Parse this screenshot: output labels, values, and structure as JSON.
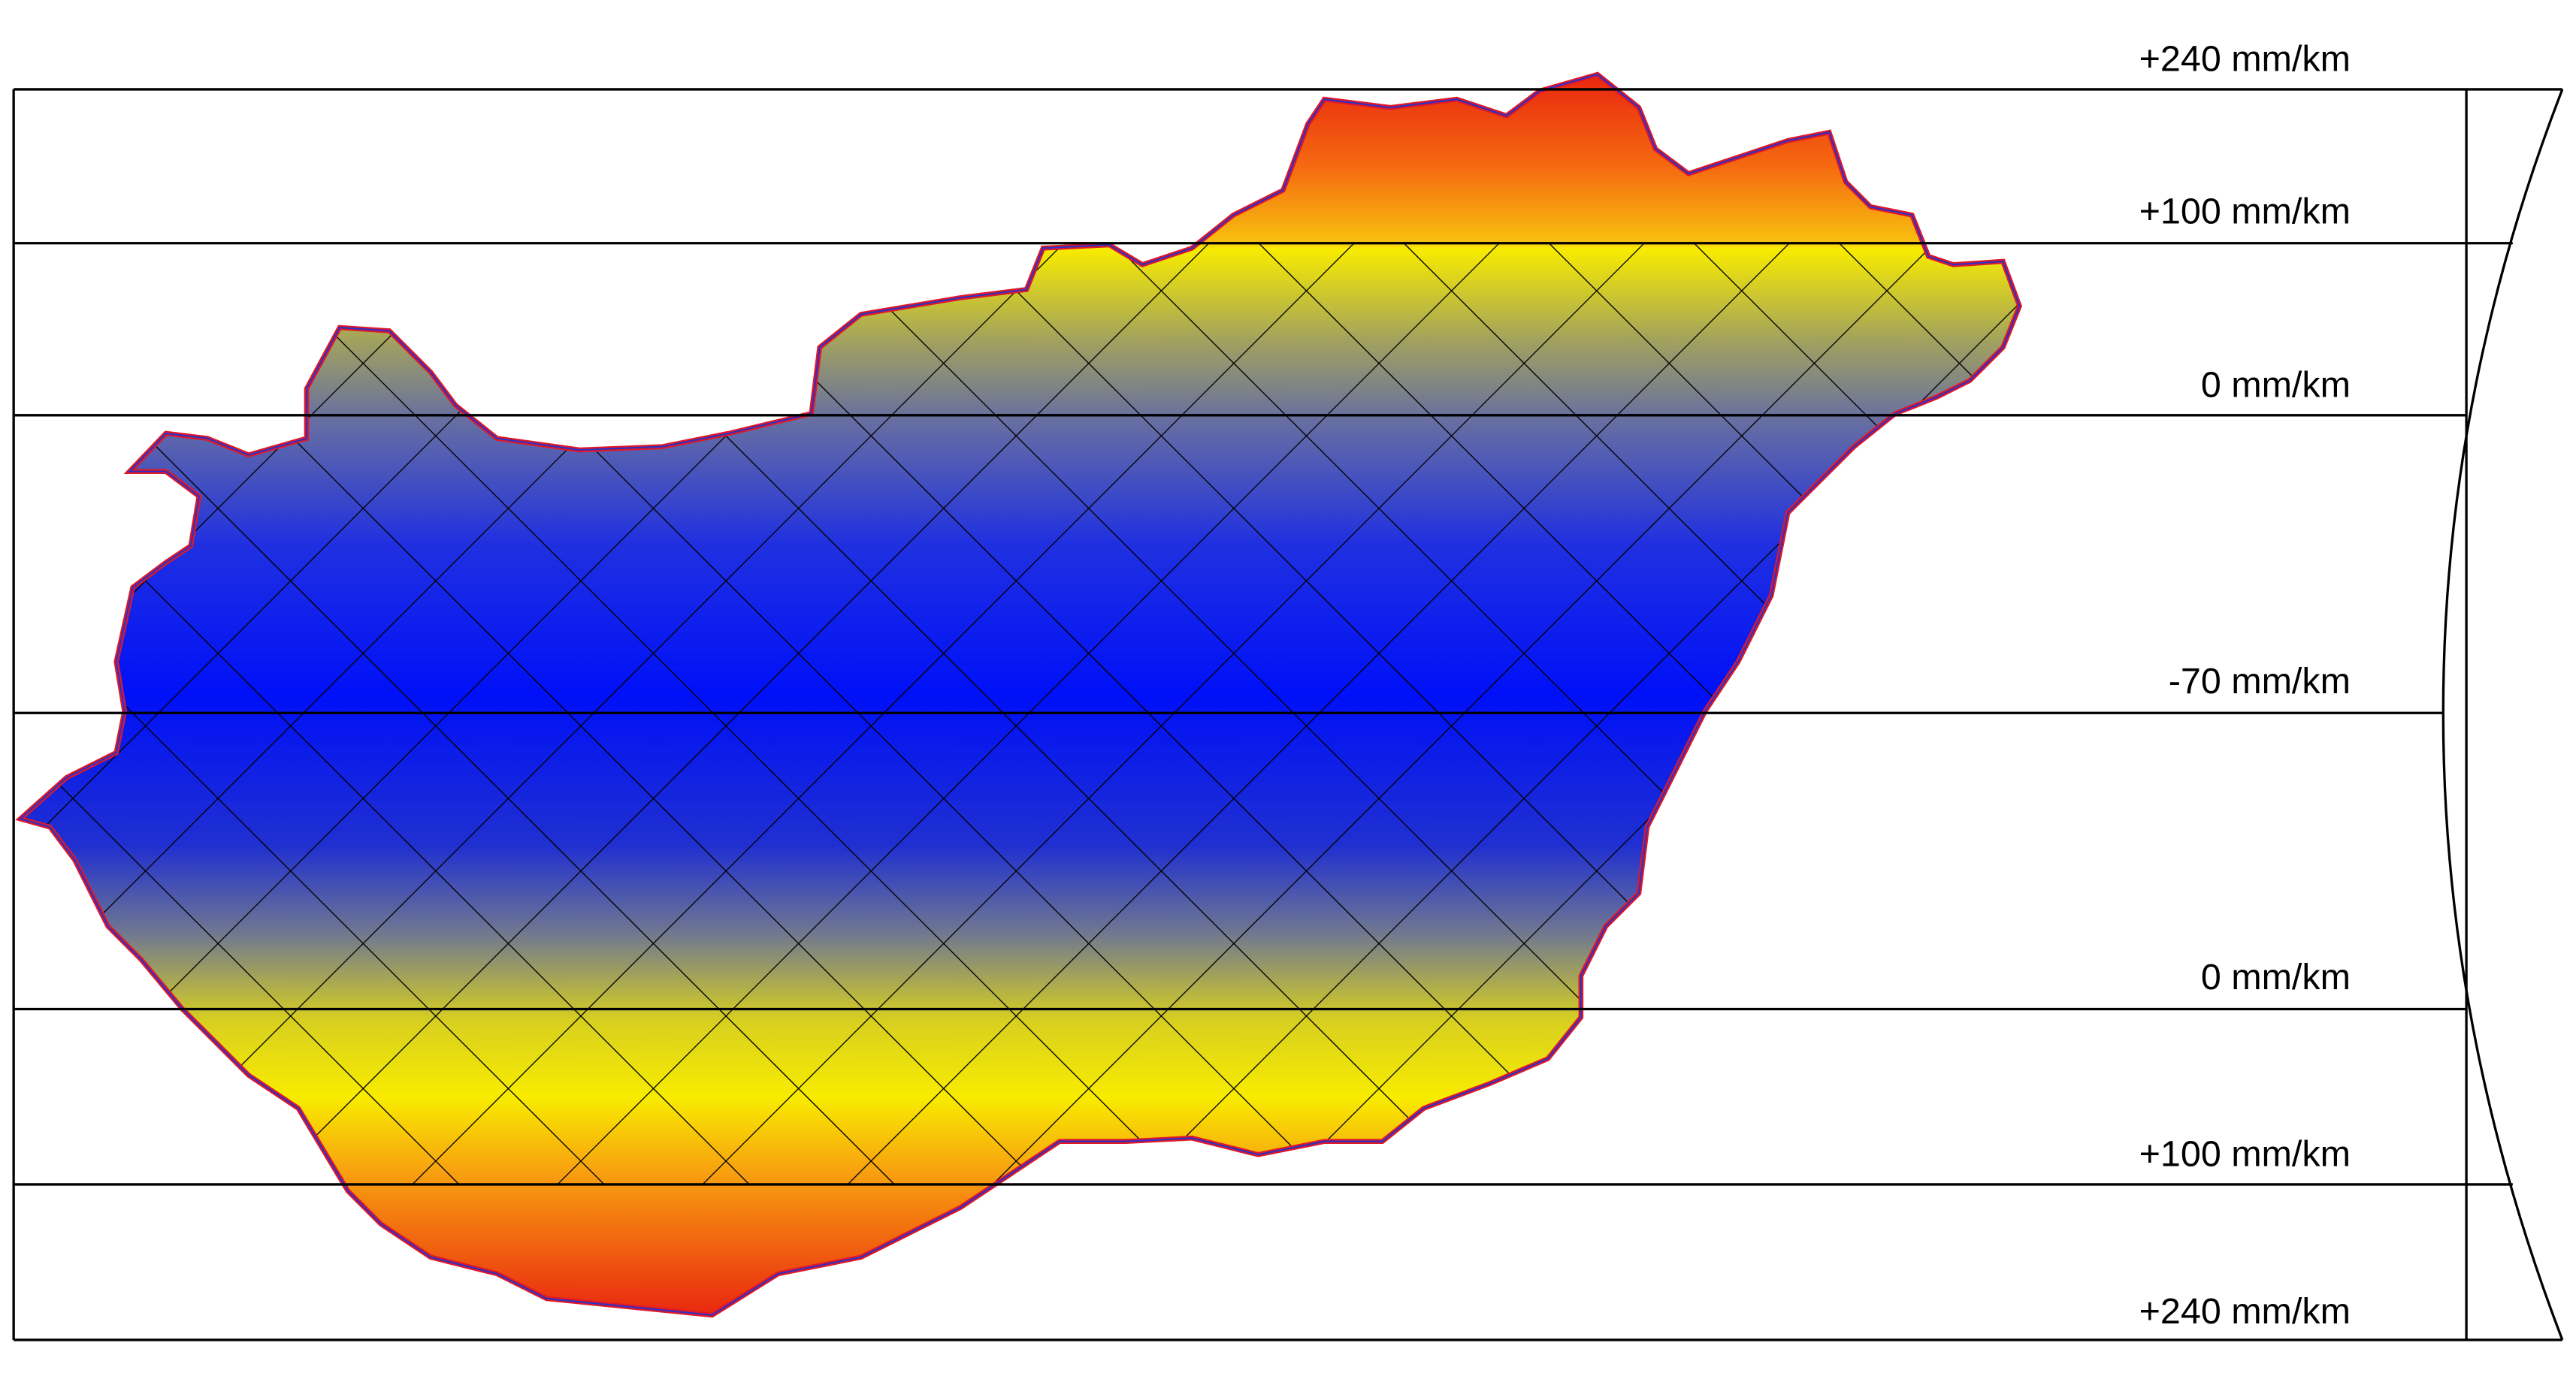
{
  "labels": [
    "+240 mm/km",
    "+100 mm/km",
    "0 mm/km",
    "-70 mm/km",
    "0 mm/km",
    "+100 mm/km",
    "+240 mm/km"
  ]
}
